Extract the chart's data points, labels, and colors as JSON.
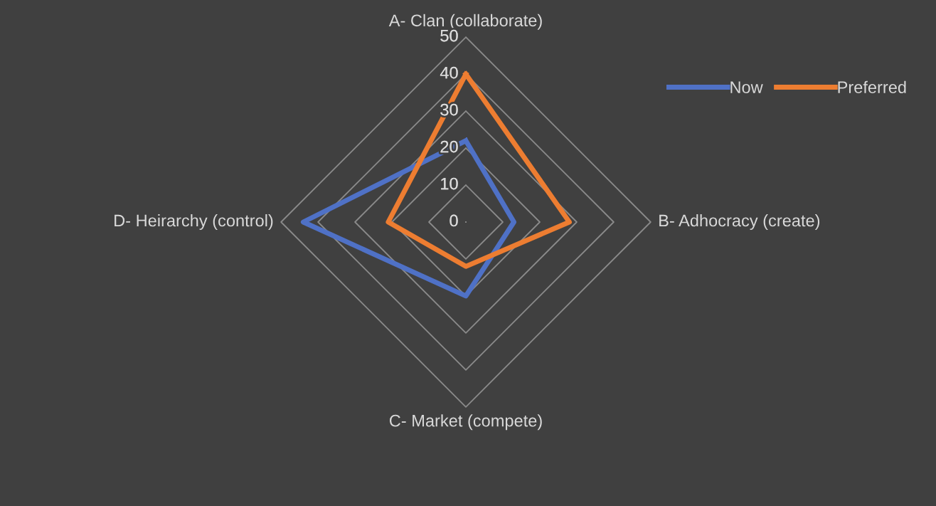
{
  "chart_data": {
    "type": "radar",
    "categories": [
      "A- Clan (collaborate)",
      "B- Adhocracy (create)",
      "C- Market (compete)",
      "D- Heirarchy (control)"
    ],
    "series": [
      {
        "name": "Now",
        "color": "#4f71c6",
        "values": [
          22,
          13,
          20,
          44
        ]
      },
      {
        "name": "Preferred",
        "color": "#ed7d31",
        "values": [
          40,
          28,
          12,
          21
        ]
      }
    ],
    "ylim": [
      0,
      50
    ],
    "yticks": [
      0,
      10,
      20,
      30,
      40,
      50
    ],
    "grid": true,
    "legend": "top right",
    "marker": "none",
    "line_style": "solid"
  }
}
